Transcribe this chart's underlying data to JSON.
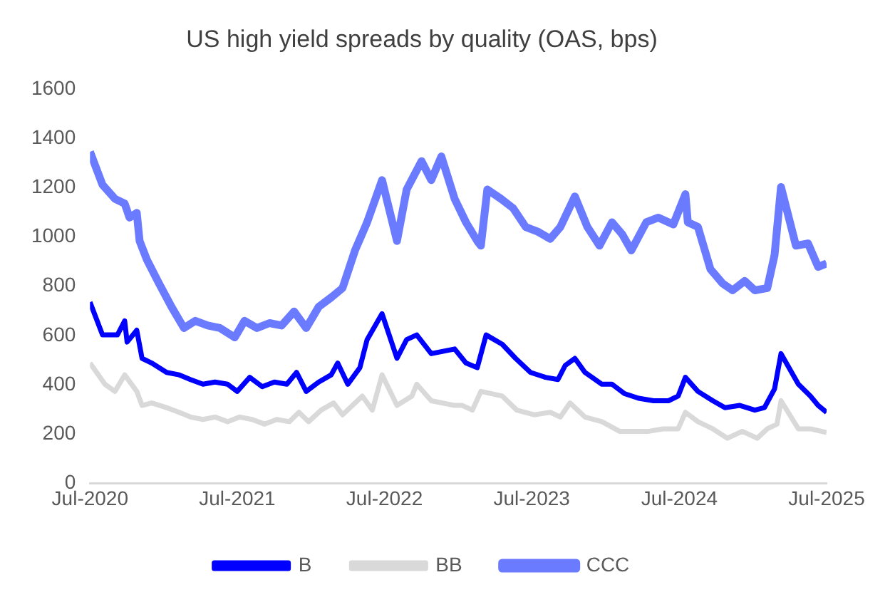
{
  "chart_data": {
    "type": "line",
    "title": "US high yield spreads by quality (OAS, bps)",
    "xlim": [
      "2020-07-01",
      "2025-07-01"
    ],
    "xticks": [
      {
        "value": "2020-07",
        "label": "Jul-2020"
      },
      {
        "value": "2021-07",
        "label": "Jul-2021"
      },
      {
        "value": "2022-07",
        "label": "Jul-2022"
      },
      {
        "value": "2023-07",
        "label": "Jul-2023"
      },
      {
        "value": "2024-07",
        "label": "Jul-2024"
      },
      {
        "value": "2025-07",
        "label": "Jul-2025"
      }
    ],
    "ylim": [
      0,
      1600
    ],
    "yticks": [
      0,
      200,
      400,
      600,
      800,
      1000,
      1200,
      1400,
      1600
    ],
    "grid": false,
    "legend": "bottom",
    "marker": "none",
    "line_style": "solid",
    "series": [
      {
        "name": "B",
        "color": "#0000ff",
        "x": [
          "2020-07-01",
          "2020-08-01",
          "2020-09-07",
          "2020-09-25",
          "2020-10-01",
          "2020-10-25",
          "2020-11-07",
          "2020-12-01",
          "2021-01-07",
          "2021-02-07",
          "2021-03-07",
          "2021-04-07",
          "2021-05-07",
          "2021-06-07",
          "2021-07-01",
          "2021-08-01",
          "2021-09-01",
          "2021-10-01",
          "2021-11-01",
          "2021-11-25",
          "2021-12-19",
          "2022-01-19",
          "2022-02-19",
          "2022-03-07",
          "2022-04-01",
          "2022-05-01",
          "2022-05-19",
          "2022-06-25",
          "2022-08-01",
          "2022-08-25",
          "2022-09-19",
          "2022-10-25",
          "2022-12-22",
          "2023-01-19",
          "2023-02-16",
          "2023-03-10",
          "2023-04-19",
          "2023-05-22",
          "2023-06-28",
          "2023-08-04",
          "2023-09-04",
          "2023-09-22",
          "2023-10-16",
          "2023-11-10",
          "2023-12-22",
          "2024-01-16",
          "2024-02-16",
          "2024-03-22",
          "2024-04-28",
          "2024-06-04",
          "2024-06-28",
          "2024-07-16",
          "2024-08-16",
          "2024-09-22",
          "2024-10-22",
          "2024-11-28",
          "2025-01-04",
          "2025-01-28",
          "2025-02-22",
          "2025-03-10",
          "2025-04-22",
          "2025-05-22",
          "2025-06-10",
          "2025-07-01"
        ],
        "values": [
          735,
          602,
          602,
          659,
          573,
          621,
          507,
          488,
          450,
          440,
          421,
          402,
          411,
          402,
          373,
          430,
          392,
          411,
          402,
          450,
          373,
          411,
          440,
          488,
          402,
          469,
          583,
          688,
          507,
          583,
          602,
          526,
          545,
          488,
          469,
          602,
          564,
          507,
          450,
          430,
          421,
          478,
          507,
          450,
          402,
          402,
          364,
          345,
          335,
          335,
          354,
          430,
          373,
          335,
          307,
          316,
          297,
          307,
          383,
          526,
          402,
          354,
          316,
          288
        ]
      },
      {
        "name": "BB",
        "color": "#d9d9d9",
        "x": [
          "2020-07-01",
          "2020-08-07",
          "2020-09-01",
          "2020-09-25",
          "2020-10-25",
          "2020-11-07",
          "2020-12-01",
          "2021-01-07",
          "2021-02-07",
          "2021-03-07",
          "2021-04-07",
          "2021-05-07",
          "2021-06-07",
          "2021-07-07",
          "2021-08-07",
          "2021-09-07",
          "2021-10-07",
          "2021-11-07",
          "2021-12-01",
          "2021-12-25",
          "2022-01-25",
          "2022-02-25",
          "2022-03-19",
          "2022-05-07",
          "2022-06-01",
          "2022-06-25",
          "2022-08-01",
          "2022-09-07",
          "2022-09-19",
          "2022-10-25",
          "2022-12-22",
          "2023-01-10",
          "2023-02-04",
          "2023-02-25",
          "2023-04-19",
          "2023-05-25",
          "2023-07-07",
          "2023-08-16",
          "2023-09-10",
          "2023-10-04",
          "2023-11-10",
          "2023-12-22",
          "2024-02-04",
          "2024-03-10",
          "2024-04-16",
          "2024-05-22",
          "2024-06-28",
          "2024-07-16",
          "2024-08-16",
          "2024-09-22",
          "2024-10-28",
          "2024-12-04",
          "2025-01-10",
          "2025-02-04",
          "2025-02-28",
          "2025-03-10",
          "2025-04-22",
          "2025-05-22",
          "2025-07-01"
        ],
        "values": [
          488,
          402,
          373,
          440,
          373,
          316,
          326,
          307,
          288,
          269,
          259,
          269,
          250,
          269,
          259,
          240,
          259,
          250,
          288,
          250,
          297,
          326,
          278,
          354,
          297,
          440,
          316,
          354,
          402,
          335,
          316,
          316,
          297,
          373,
          354,
          297,
          278,
          288,
          269,
          326,
          269,
          250,
          211,
          211,
          211,
          221,
          221,
          288,
          250,
          221,
          183,
          211,
          183,
          221,
          240,
          335,
          221,
          221,
          206
        ]
      },
      {
        "name": "CCC",
        "color": "#6b7bff",
        "x": [
          "2020-07-01",
          "2020-08-01",
          "2020-09-01",
          "2020-09-25",
          "2020-10-07",
          "2020-10-25",
          "2020-11-01",
          "2020-11-19",
          "2020-12-19",
          "2021-01-19",
          "2021-02-19",
          "2021-03-19",
          "2021-04-19",
          "2021-05-19",
          "2021-06-25",
          "2021-07-19",
          "2021-08-19",
          "2021-09-19",
          "2021-10-19",
          "2021-11-19",
          "2021-12-19",
          "2022-01-19",
          "2022-02-19",
          "2022-03-19",
          "2022-04-19",
          "2022-05-19",
          "2022-06-25",
          "2022-08-01",
          "2022-08-25",
          "2022-10-01",
          "2022-10-25",
          "2022-11-19",
          "2022-12-22",
          "2023-01-19",
          "2023-02-16",
          "2023-02-25",
          "2023-03-13",
          "2023-04-16",
          "2023-05-16",
          "2023-06-16",
          "2023-07-16",
          "2023-08-16",
          "2023-09-10",
          "2023-10-16",
          "2023-11-16",
          "2023-12-16",
          "2024-01-16",
          "2024-02-10",
          "2024-03-04",
          "2024-04-10",
          "2024-05-10",
          "2024-06-16",
          "2024-07-16",
          "2024-07-22",
          "2024-08-16",
          "2024-09-16",
          "2024-10-16",
          "2024-11-10",
          "2024-12-10",
          "2025-01-04",
          "2025-02-04",
          "2025-02-22",
          "2025-03-10",
          "2025-04-16",
          "2025-05-16",
          "2025-06-10",
          "2025-07-01"
        ],
        "values": [
          1345,
          1211,
          1154,
          1135,
          1078,
          1097,
          983,
          907,
          811,
          716,
          630,
          659,
          640,
          630,
          592,
          659,
          630,
          650,
          640,
          697,
          630,
          716,
          754,
          792,
          945,
          1059,
          1230,
          983,
          1192,
          1307,
          1230,
          1326,
          1154,
          1059,
          983,
          964,
          1192,
          1154,
          1116,
          1040,
          1021,
          992,
          1040,
          1164,
          1040,
          964,
          1059,
          1011,
          945,
          1059,
          1078,
          1050,
          1173,
          1059,
          1040,
          869,
          811,
          783,
          821,
          783,
          792,
          926,
          1202,
          964,
          973,
          878,
          892
        ]
      }
    ]
  }
}
